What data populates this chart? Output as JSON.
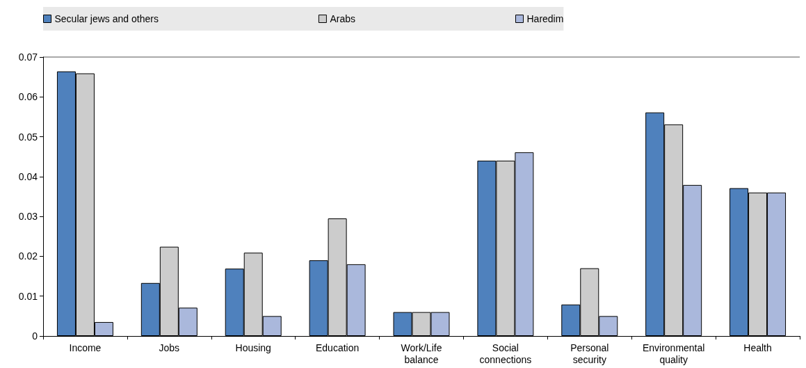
{
  "chart_data": {
    "type": "bar",
    "categories": [
      "Income",
      "Jobs",
      "Housing",
      "Education",
      "Work/Life balance",
      "Social connections",
      "Personal security",
      "Environmental quality",
      "Health"
    ],
    "series": [
      {
        "name": "Secular jews and others",
        "color": "#4f81bd",
        "values": [
          0.0664,
          0.0133,
          0.0169,
          0.019,
          0.006,
          0.044,
          0.0079,
          0.0561,
          0.0371
        ]
      },
      {
        "name": "Arabs",
        "color": "#cccccc",
        "values": [
          0.0659,
          0.0224,
          0.0209,
          0.0295,
          0.006,
          0.044,
          0.017,
          0.0531,
          0.036
        ]
      },
      {
        "name": "Haredim",
        "color": "#aab8dc",
        "values": [
          0.0035,
          0.0071,
          0.005,
          0.018,
          0.006,
          0.0461,
          0.005,
          0.0379,
          0.036
        ]
      }
    ],
    "ylim": [
      0,
      0.07
    ],
    "yticks": [
      0,
      0.01,
      0.02,
      0.03,
      0.04,
      0.05,
      0.06,
      0.07
    ],
    "grid": false,
    "legend": "top"
  }
}
